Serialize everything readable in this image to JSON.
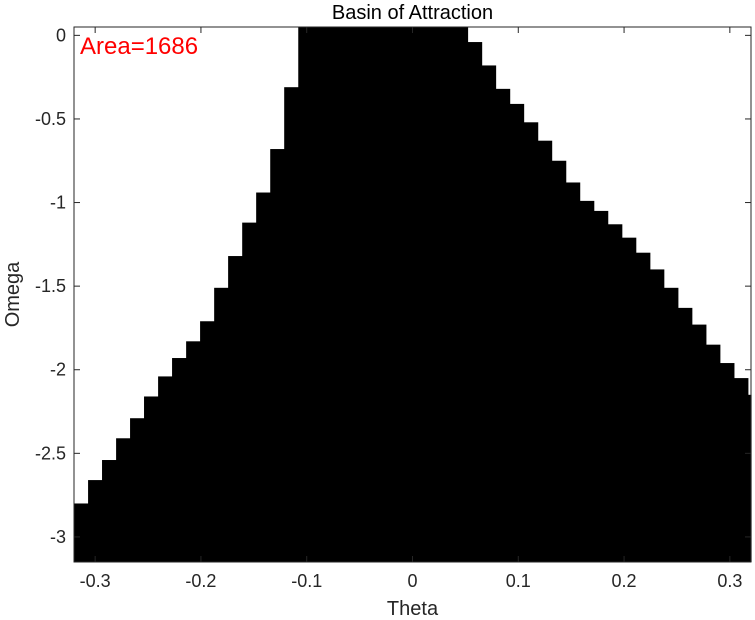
{
  "chart_data": {
    "type": "area",
    "title": "Basin of Attraction",
    "xlabel": "Theta",
    "ylabel": "Omega",
    "xlim": [
      -0.32,
      0.32
    ],
    "ylim": [
      -3.15,
      0.05
    ],
    "xticks": [
      -0.3,
      -0.2,
      -0.1,
      0,
      0.1,
      0.2,
      0.3
    ],
    "xtick_labels": [
      "-0.3",
      "-0.2",
      "-0.1",
      "0",
      "0.1",
      "0.2",
      "0.3"
    ],
    "yticks": [
      0,
      -0.5,
      -1,
      -1.5,
      -2,
      -2.5,
      -3
    ],
    "ytick_labels": [
      "0",
      "-0.5",
      "-1",
      "-1.5",
      "-2",
      "-2.5",
      "-3"
    ],
    "annotation": "Area=1686",
    "grid": false,
    "fill_color": "#000000",
    "annotation_color": "#ff0000",
    "region_columns": [
      {
        "theta": [
          -0.32,
          -0.3067
        ],
        "omega_top": -2.8
      },
      {
        "theta": [
          -0.3067,
          -0.2935
        ],
        "omega_top": -2.66
      },
      {
        "theta": [
          -0.2935,
          -0.2802
        ],
        "omega_top": -2.54
      },
      {
        "theta": [
          -0.2802,
          -0.267
        ],
        "omega_top": -2.41
      },
      {
        "theta": [
          -0.267,
          -0.2538
        ],
        "omega_top": -2.29
      },
      {
        "theta": [
          -0.2538,
          -0.2405
        ],
        "omega_top": -2.16
      },
      {
        "theta": [
          -0.2405,
          -0.2273
        ],
        "omega_top": -2.04
      },
      {
        "theta": [
          -0.2273,
          -0.214
        ],
        "omega_top": -1.93
      },
      {
        "theta": [
          -0.214,
          -0.2008
        ],
        "omega_top": -1.83
      },
      {
        "theta": [
          -0.2008,
          -0.1875
        ],
        "omega_top": -1.71
      },
      {
        "theta": [
          -0.1875,
          -0.1743
        ],
        "omega_top": -1.51
      },
      {
        "theta": [
          -0.1743,
          -0.161
        ],
        "omega_top": -1.32
      },
      {
        "theta": [
          -0.161,
          -0.1478
        ],
        "omega_top": -1.12
      },
      {
        "theta": [
          -0.1478,
          -0.1345
        ],
        "omega_top": -0.94
      },
      {
        "theta": [
          -0.1345,
          -0.1213
        ],
        "omega_top": -0.68
      },
      {
        "theta": [
          -0.1213,
          -0.108
        ],
        "omega_top": -0.31
      },
      {
        "theta": [
          -0.108,
          0.052
        ],
        "omega_top": 0.05
      },
      {
        "theta": [
          0.052,
          0.0653
        ],
        "omega_top": -0.04
      },
      {
        "theta": [
          0.0653,
          0.0785
        ],
        "omega_top": -0.18
      },
      {
        "theta": [
          0.0785,
          0.0918
        ],
        "omega_top": -0.32
      },
      {
        "theta": [
          0.0918,
          0.105
        ],
        "omega_top": -0.41
      },
      {
        "theta": [
          0.105,
          0.1183
        ],
        "omega_top": -0.52
      },
      {
        "theta": [
          0.1183,
          0.1315
        ],
        "omega_top": -0.63
      },
      {
        "theta": [
          0.1315,
          0.1448
        ],
        "omega_top": -0.75
      },
      {
        "theta": [
          0.1448,
          0.158
        ],
        "omega_top": -0.88
      },
      {
        "theta": [
          0.158,
          0.1713
        ],
        "omega_top": -0.99
      },
      {
        "theta": [
          0.1713,
          0.1845
        ],
        "omega_top": -1.05
      },
      {
        "theta": [
          0.1845,
          0.1978
        ],
        "omega_top": -1.13
      },
      {
        "theta": [
          0.1978,
          0.211
        ],
        "omega_top": -1.21
      },
      {
        "theta": [
          0.211,
          0.2243
        ],
        "omega_top": -1.3
      },
      {
        "theta": [
          0.2243,
          0.2375
        ],
        "omega_top": -1.4
      },
      {
        "theta": [
          0.2375,
          0.2508
        ],
        "omega_top": -1.51
      },
      {
        "theta": [
          0.2508,
          0.264
        ],
        "omega_top": -1.63
      },
      {
        "theta": [
          0.264,
          0.2773
        ],
        "omega_top": -1.73
      },
      {
        "theta": [
          0.2773,
          0.2905
        ],
        "omega_top": -1.85
      },
      {
        "theta": [
          0.2905,
          0.3038
        ],
        "omega_top": -1.96
      },
      {
        "theta": [
          0.3038,
          0.317
        ],
        "omega_top": -2.05
      },
      {
        "theta": [
          0.317,
          0.32
        ],
        "omega_top": -2.15
      }
    ]
  }
}
